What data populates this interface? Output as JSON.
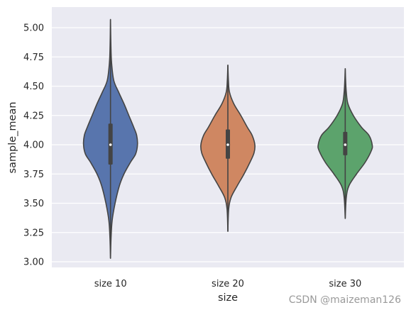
{
  "chart_data": {
    "type": "violin",
    "xlabel": "size",
    "ylabel": "sample_mean",
    "ylim": [
      2.95,
      5.1
    ],
    "yticks": [
      "3.00",
      "3.25",
      "3.50",
      "3.75",
      "4.00",
      "4.25",
      "4.50",
      "4.75",
      "5.00"
    ],
    "grid": true,
    "background": "#eaeaf2",
    "series": [
      {
        "category": "size 10",
        "color": "#5875ad",
        "min": 3.03,
        "q1": 3.83,
        "median": 4.0,
        "q3": 4.18,
        "max": 5.07,
        "profile": [
          [
            3.03,
            0.0
          ],
          [
            3.2,
            0.02
          ],
          [
            3.35,
            0.06
          ],
          [
            3.5,
            0.17
          ],
          [
            3.65,
            0.33
          ],
          [
            3.75,
            0.5
          ],
          [
            3.85,
            0.74
          ],
          [
            3.92,
            0.93
          ],
          [
            4.0,
            1.0
          ],
          [
            4.08,
            0.97
          ],
          [
            4.15,
            0.86
          ],
          [
            4.25,
            0.68
          ],
          [
            4.35,
            0.5
          ],
          [
            4.45,
            0.3
          ],
          [
            4.55,
            0.12
          ],
          [
            4.7,
            0.04
          ],
          [
            4.85,
            0.015
          ],
          [
            5.07,
            0.0
          ]
        ]
      },
      {
        "category": "size 20",
        "color": "#cf8762",
        "min": 3.26,
        "q1": 3.88,
        "median": 4.0,
        "q3": 4.13,
        "max": 4.68,
        "profile": [
          [
            3.26,
            0.0
          ],
          [
            3.45,
            0.03
          ],
          [
            3.55,
            0.12
          ],
          [
            3.65,
            0.35
          ],
          [
            3.75,
            0.6
          ],
          [
            3.85,
            0.82
          ],
          [
            3.93,
            0.97
          ],
          [
            4.0,
            1.0
          ],
          [
            4.08,
            0.9
          ],
          [
            4.15,
            0.72
          ],
          [
            4.25,
            0.48
          ],
          [
            4.35,
            0.22
          ],
          [
            4.45,
            0.06
          ],
          [
            4.55,
            0.02
          ],
          [
            4.68,
            0.0
          ]
        ]
      },
      {
        "category": "size 30",
        "color": "#5ca36c",
        "min": 3.37,
        "q1": 3.91,
        "median": 4.0,
        "q3": 4.11,
        "max": 4.65,
        "profile": [
          [
            3.37,
            0.0
          ],
          [
            3.55,
            0.04
          ],
          [
            3.65,
            0.14
          ],
          [
            3.75,
            0.42
          ],
          [
            3.85,
            0.74
          ],
          [
            3.95,
            0.97
          ],
          [
            4.0,
            1.0
          ],
          [
            4.08,
            0.88
          ],
          [
            4.15,
            0.6
          ],
          [
            4.25,
            0.3
          ],
          [
            4.35,
            0.1
          ],
          [
            4.45,
            0.04
          ],
          [
            4.55,
            0.015
          ],
          [
            4.65,
            0.0
          ]
        ]
      }
    ]
  },
  "watermark": "CSDN @maizeman126"
}
